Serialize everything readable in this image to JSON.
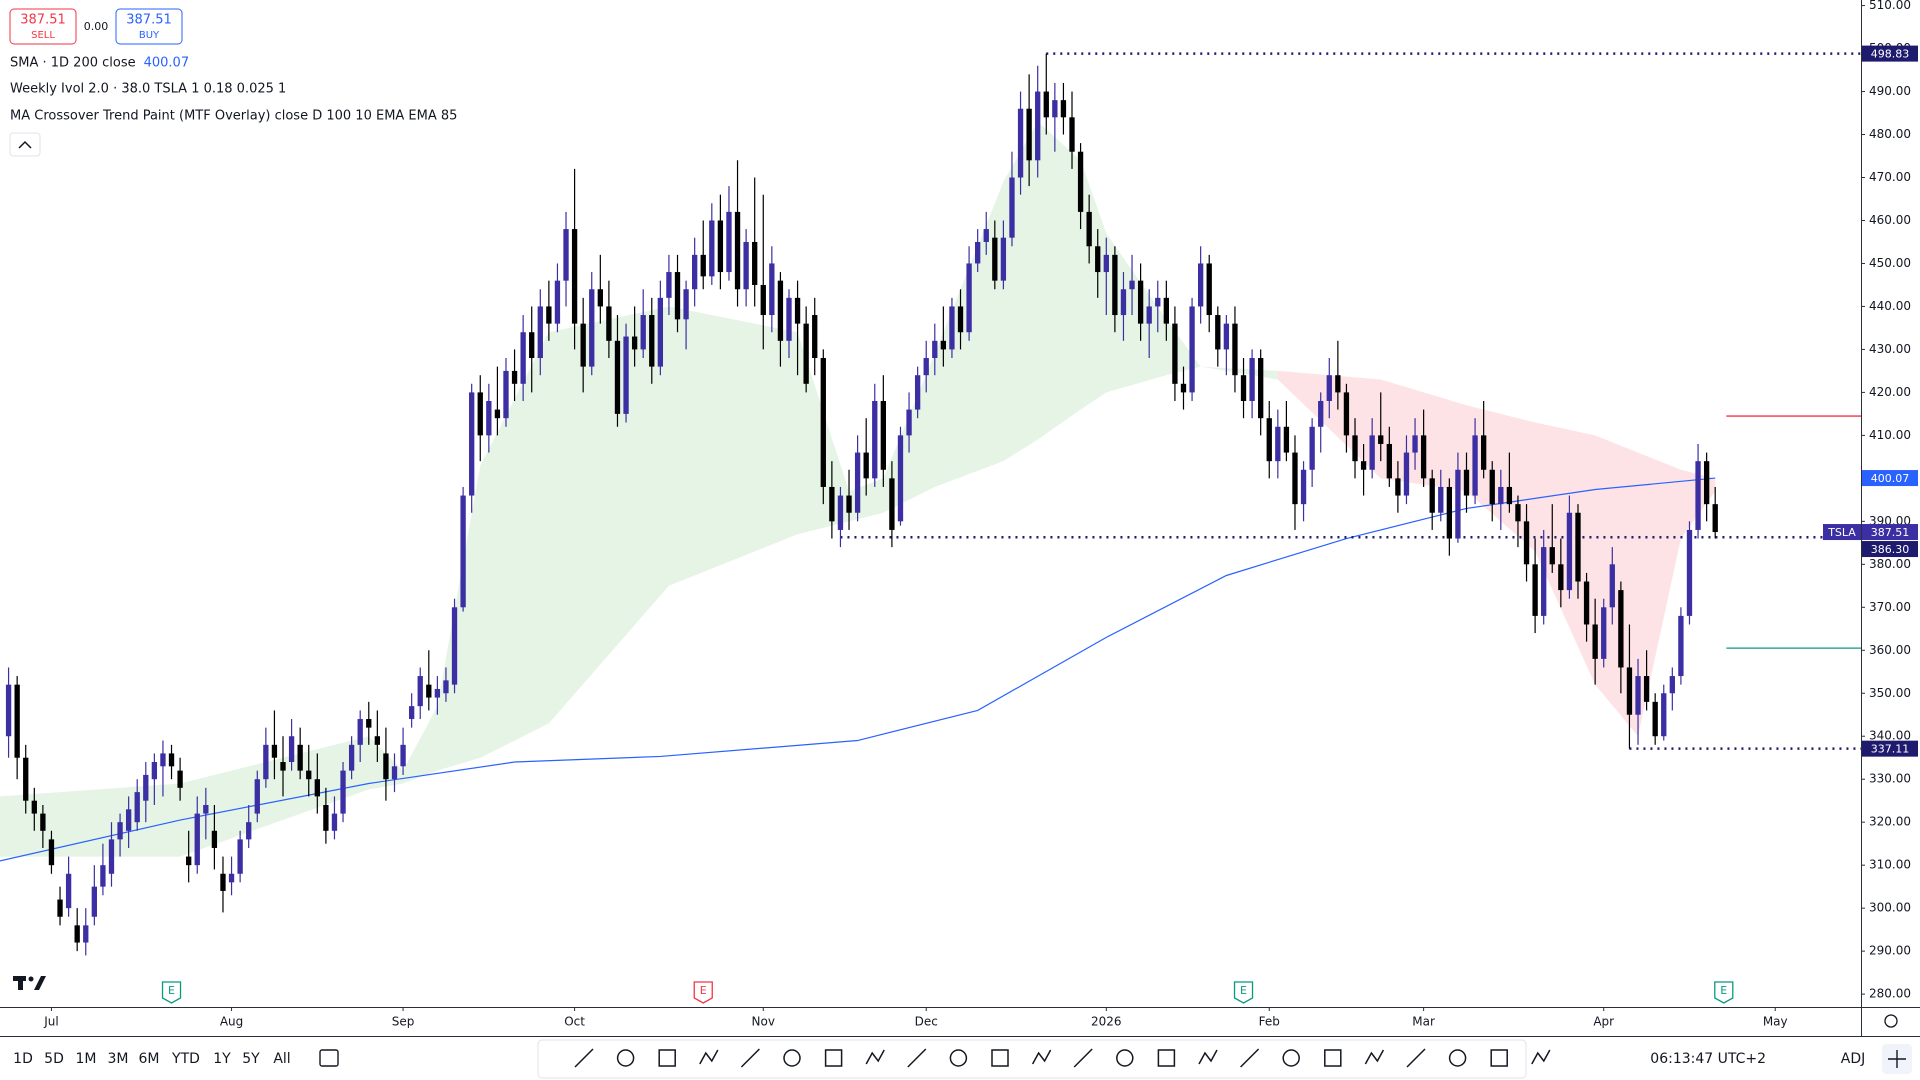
{
  "trade": {
    "sell_price": "387.51",
    "sell": "SELL",
    "spread": "0.00",
    "buy_price": "387.51",
    "buy": "BUY"
  },
  "legend": {
    "ivol": "Weekly Ivol 2.0 · 38.0 TSLA 1 0.18 0.025 1",
    "ma_paint": "MA Crossover Trend Paint (MTF Overlay) close D 100 10 EMA EMA 85"
  },
  "chart_data": {
    "type": "candlestick",
    "symbol": "TSLA",
    "up_color": "#3b2fa3",
    "down_color": "#000000",
    "grid": false,
    "xlim": [
      -1,
      216
    ],
    "ylim": [
      277,
      511.3
    ],
    "xticks": [
      {
        "value": 5,
        "label": "Jul"
      },
      {
        "value": 26,
        "label": "Aug"
      },
      {
        "value": 46,
        "label": "Sep"
      },
      {
        "value": 66,
        "label": "Oct"
      },
      {
        "value": 88,
        "label": "Nov"
      },
      {
        "value": 107,
        "label": "Dec"
      },
      {
        "value": 128,
        "label": "2026"
      },
      {
        "value": 147,
        "label": "Feb"
      },
      {
        "value": 165,
        "label": "Mar"
      },
      {
        "value": 186,
        "label": "Apr"
      },
      {
        "value": 206,
        "label": "May"
      }
    ],
    "yticks": [
      {
        "value": 280,
        "label": "280.00"
      },
      {
        "value": 290,
        "label": "290.00"
      },
      {
        "value": 300,
        "label": "300.00"
      },
      {
        "value": 310,
        "label": "310.00"
      },
      {
        "value": 320,
        "label": "320.00"
      },
      {
        "value": 330,
        "label": "330.00"
      },
      {
        "value": 340,
        "label": "340.00"
      },
      {
        "value": 350,
        "label": "350.00"
      },
      {
        "value": 360,
        "label": "360.00"
      },
      {
        "value": 370,
        "label": "370.00"
      },
      {
        "value": 380,
        "label": "380.00"
      },
      {
        "value": 390,
        "label": "390.00"
      },
      {
        "value": 400,
        "label": "400.00"
      },
      {
        "value": 410,
        "label": "410.00"
      },
      {
        "value": 420,
        "label": "420.00"
      },
      {
        "value": 430,
        "label": "430.00"
      },
      {
        "value": 440,
        "label": "440.00"
      },
      {
        "value": 450,
        "label": "450.00"
      },
      {
        "value": 460,
        "label": "460.00"
      },
      {
        "value": 470,
        "label": "470.00"
      },
      {
        "value": 480,
        "label": "480.00"
      },
      {
        "value": 490,
        "label": "490.00"
      },
      {
        "value": 500,
        "label": "500.00"
      },
      {
        "value": 510,
        "label": "510.00"
      }
    ],
    "candles": [
      [
        340,
        356,
        335,
        352
      ],
      [
        352,
        354,
        330,
        335
      ],
      [
        335,
        338,
        322,
        325
      ],
      [
        325,
        328,
        318,
        322
      ],
      [
        322,
        324,
        314,
        318
      ],
      [
        316,
        318,
        308,
        310
      ],
      [
        302,
        305,
        296,
        298
      ],
      [
        300,
        312,
        298,
        308
      ],
      [
        296,
        300,
        290,
        292
      ],
      [
        292,
        300,
        289,
        296
      ],
      [
        298,
        310,
        296,
        305
      ],
      [
        305,
        315,
        303,
        310
      ],
      [
        308,
        320,
        305,
        316
      ],
      [
        316,
        322,
        312,
        320
      ],
      [
        318,
        326,
        314,
        323
      ],
      [
        320,
        330,
        318,
        327
      ],
      [
        325,
        334,
        320,
        331
      ],
      [
        330,
        336,
        324,
        334
      ],
      [
        333,
        339,
        326,
        336
      ],
      [
        336,
        338,
        330,
        333
      ],
      [
        332,
        335,
        325,
        328
      ],
      [
        312,
        318,
        306,
        310
      ],
      [
        310,
        326,
        308,
        322
      ],
      [
        322,
        328,
        316,
        324
      ],
      [
        318,
        324,
        309,
        314
      ],
      [
        308,
        312,
        299,
        304
      ],
      [
        306,
        312,
        303,
        308
      ],
      [
        308,
        318,
        306,
        316
      ],
      [
        316,
        324,
        314,
        320
      ],
      [
        322,
        332,
        320,
        330
      ],
      [
        330,
        342,
        328,
        338
      ],
      [
        338,
        346,
        330,
        335
      ],
      [
        334,
        340,
        326,
        332
      ],
      [
        334,
        344,
        332,
        340
      ],
      [
        338,
        342,
        330,
        332
      ],
      [
        332,
        338,
        326,
        330
      ],
      [
        330,
        336,
        322,
        326
      ],
      [
        324,
        328,
        315,
        318
      ],
      [
        318,
        326,
        316,
        322
      ],
      [
        322,
        334,
        320,
        332
      ],
      [
        332,
        340,
        330,
        338
      ],
      [
        338,
        346,
        334,
        344
      ],
      [
        344,
        348,
        338,
        342
      ],
      [
        340,
        346,
        334,
        338
      ],
      [
        336,
        342,
        325,
        330
      ],
      [
        330,
        336,
        327,
        333
      ],
      [
        333,
        342,
        331,
        338
      ],
      [
        344,
        350,
        342,
        347
      ],
      [
        347,
        356,
        344,
        354
      ],
      [
        352,
        360,
        346,
        349
      ],
      [
        349,
        354,
        345,
        351
      ],
      [
        350,
        356,
        348,
        353
      ],
      [
        352,
        372,
        350,
        370
      ],
      [
        370,
        398,
        369,
        396
      ],
      [
        396,
        422,
        392,
        420
      ],
      [
        420,
        424,
        404,
        410
      ],
      [
        410,
        422,
        406,
        418
      ],
      [
        416,
        426,
        410,
        414
      ],
      [
        414,
        428,
        412,
        425
      ],
      [
        425,
        430,
        418,
        422
      ],
      [
        422,
        438,
        418,
        434
      ],
      [
        434,
        440,
        420,
        428
      ],
      [
        428,
        444,
        424,
        440
      ],
      [
        440,
        446,
        432,
        436
      ],
      [
        436,
        450,
        434,
        446
      ],
      [
        446,
        462,
        440,
        458
      ],
      [
        458,
        472,
        430,
        436
      ],
      [
        436,
        442,
        420,
        426
      ],
      [
        426,
        448,
        424,
        444
      ],
      [
        444,
        452,
        436,
        440
      ],
      [
        440,
        446,
        428,
        432
      ],
      [
        432,
        438,
        412,
        415
      ],
      [
        415,
        436,
        413,
        433
      ],
      [
        433,
        440,
        426,
        430
      ],
      [
        430,
        444,
        428,
        438
      ],
      [
        438,
        442,
        422,
        426
      ],
      [
        426,
        446,
        424,
        442
      ],
      [
        442,
        452,
        438,
        448
      ],
      [
        448,
        452,
        434,
        437
      ],
      [
        437,
        446,
        430,
        444
      ],
      [
        444,
        456,
        440,
        452
      ],
      [
        452,
        460,
        444,
        447
      ],
      [
        447,
        464,
        445,
        460
      ],
      [
        460,
        466,
        444,
        448
      ],
      [
        448,
        468,
        446,
        462
      ],
      [
        462,
        474,
        440,
        444
      ],
      [
        444,
        458,
        440,
        455
      ],
      [
        455,
        470,
        440,
        445
      ],
      [
        445,
        466,
        430,
        438
      ],
      [
        438,
        454,
        434,
        450
      ],
      [
        446,
        448,
        426,
        432
      ],
      [
        432,
        444,
        428,
        442
      ],
      [
        442,
        446,
        424,
        436
      ],
      [
        436,
        440,
        420,
        422
      ],
      [
        438,
        442,
        424,
        428
      ],
      [
        428,
        430,
        394,
        398
      ],
      [
        398,
        404,
        386,
        390
      ],
      [
        388,
        398,
        384,
        396
      ],
      [
        396,
        402,
        388,
        392
      ],
      [
        392,
        410,
        390,
        406
      ],
      [
        406,
        414,
        396,
        400
      ],
      [
        400,
        422,
        398,
        418
      ],
      [
        418,
        424,
        398,
        402
      ],
      [
        400,
        404,
        384,
        388
      ],
      [
        390,
        412,
        389,
        410
      ],
      [
        410,
        420,
        406,
        416
      ],
      [
        416,
        426,
        414,
        424
      ],
      [
        424,
        432,
        420,
        428
      ],
      [
        428,
        436,
        424,
        432
      ],
      [
        432,
        440,
        426,
        430
      ],
      [
        430,
        442,
        428,
        440
      ],
      [
        440,
        444,
        430,
        434
      ],
      [
        434,
        454,
        432,
        450
      ],
      [
        450,
        458,
        448,
        455
      ],
      [
        455,
        462,
        452,
        458
      ],
      [
        456,
        460,
        444,
        446
      ],
      [
        446,
        460,
        444,
        456
      ],
      [
        456,
        476,
        454,
        470
      ],
      [
        470,
        490,
        466,
        486
      ],
      [
        486,
        494,
        468,
        474
      ],
      [
        474,
        496,
        470,
        490
      ],
      [
        490,
        498.83,
        480,
        484
      ],
      [
        484,
        492,
        476,
        488
      ],
      [
        488,
        492,
        480,
        484
      ],
      [
        484,
        490,
        472,
        476
      ],
      [
        476,
        478,
        458,
        462
      ],
      [
        462,
        466,
        450,
        454
      ],
      [
        454,
        458,
        442,
        448
      ],
      [
        448,
        456,
        438,
        452
      ],
      [
        452,
        454,
        434,
        438
      ],
      [
        438,
        448,
        432,
        444
      ],
      [
        444,
        452,
        438,
        446
      ],
      [
        446,
        450,
        432,
        436
      ],
      [
        436,
        444,
        428,
        440
      ],
      [
        440,
        446,
        434,
        442
      ],
      [
        442,
        446,
        432,
        436
      ],
      [
        436,
        440,
        418,
        422
      ],
      [
        422,
        426,
        416,
        420
      ],
      [
        420,
        442,
        418,
        440
      ],
      [
        440,
        454,
        436,
        450
      ],
      [
        450,
        452,
        434,
        438
      ],
      [
        438,
        440,
        426,
        430
      ],
      [
        430,
        438,
        424,
        436
      ],
      [
        436,
        440,
        420,
        424
      ],
      [
        424,
        428,
        414,
        418
      ],
      [
        418,
        430,
        414,
        428
      ],
      [
        428,
        430,
        410,
        414
      ],
      [
        414,
        418,
        400,
        404
      ],
      [
        404,
        416,
        400,
        412
      ],
      [
        412,
        418,
        404,
        406
      ],
      [
        406,
        410,
        388,
        394
      ],
      [
        394,
        404,
        390,
        402
      ],
      [
        402,
        414,
        398,
        412
      ],
      [
        412,
        420,
        406,
        418
      ],
      [
        418,
        428,
        414,
        424
      ],
      [
        424,
        432,
        416,
        420
      ],
      [
        420,
        422,
        406,
        410
      ],
      [
        410,
        414,
        400,
        404
      ],
      [
        404,
        408,
        396,
        402
      ],
      [
        402,
        414,
        400,
        410
      ],
      [
        410,
        420,
        404,
        408
      ],
      [
        408,
        412,
        398,
        400
      ],
      [
        400,
        404,
        392,
        396
      ],
      [
        396,
        410,
        394,
        406
      ],
      [
        406,
        414,
        402,
        410
      ],
      [
        410,
        416,
        398,
        400
      ],
      [
        400,
        402,
        388,
        392
      ],
      [
        392,
        402,
        390,
        398
      ],
      [
        398,
        400,
        382,
        386
      ],
      [
        386,
        406,
        385,
        402
      ],
      [
        402,
        406,
        392,
        396
      ],
      [
        396,
        414,
        394,
        410
      ],
      [
        410,
        418,
        400,
        402
      ],
      [
        402,
        404,
        390,
        394
      ],
      [
        394,
        402,
        388,
        398
      ],
      [
        398,
        406,
        392,
        394
      ],
      [
        394,
        396,
        384,
        390
      ],
      [
        390,
        394,
        376,
        380
      ],
      [
        380,
        386,
        364,
        368
      ],
      [
        368,
        388,
        366,
        384
      ],
      [
        384,
        394,
        378,
        380
      ],
      [
        380,
        386,
        370,
        374
      ],
      [
        374,
        396,
        372,
        392
      ],
      [
        392,
        394,
        372,
        376
      ],
      [
        376,
        378,
        362,
        366
      ],
      [
        366,
        372,
        352,
        358
      ],
      [
        358,
        372,
        356,
        370
      ],
      [
        370,
        384,
        366,
        380
      ],
      [
        374,
        376,
        350,
        356
      ],
      [
        356,
        366,
        337.11,
        345
      ],
      [
        345,
        358,
        338,
        354
      ],
      [
        354,
        360,
        346,
        348
      ],
      [
        348,
        350,
        338,
        340
      ],
      [
        340,
        352,
        339,
        350
      ],
      [
        350,
        356,
        346,
        354
      ],
      [
        354,
        370,
        352,
        368
      ],
      [
        368,
        390,
        366,
        388
      ],
      [
        388,
        408,
        386,
        404
      ],
      [
        404,
        406,
        390,
        394
      ],
      [
        394,
        398,
        386,
        387.51
      ]
    ],
    "sma": {
      "name": "SMA · 1D 200 close",
      "color": "#2962ff",
      "x": [
        -1,
        20,
        42,
        59,
        76,
        99,
        113,
        128,
        142,
        156,
        170,
        185,
        199
      ],
      "values": [
        311,
        320.5,
        329,
        334,
        335.3,
        339,
        346,
        363,
        377.4,
        386,
        393,
        397.4,
        400.07
      ]
    },
    "fills": [
      {
        "color": "rgba(76,175,80,0.14)",
        "x": [
          -1,
          20,
          42,
          46,
          50,
          55,
          63,
          77,
          92,
          98,
          102,
          108,
          116,
          120,
          125,
          128,
          135,
          139,
          148
        ],
        "fast": [
          326,
          329,
          340,
          332,
          347,
          403,
          434,
          440,
          434,
          397,
          400,
          429,
          469,
          483,
          474,
          457,
          437,
          426,
          423
        ],
        "slow": [
          312,
          312,
          327.6,
          329,
          332,
          335,
          343,
          375,
          387,
          390,
          392,
          398,
          404,
          409,
          416,
          420,
          424,
          426,
          425
        ]
      },
      {
        "color": "rgba(242,54,69,0.14)",
        "x": [
          148,
          160,
          170,
          178,
          185,
          190,
          195,
          199
        ],
        "fast": [
          423,
          400,
          397,
          383,
          352,
          340,
          386,
          397
        ],
        "slow": [
          425,
          423,
          417,
          413,
          410,
          406,
          402,
          400
        ]
      }
    ],
    "levels": [
      {
        "value": 498.83,
        "from": 121
      },
      {
        "value": 386.3,
        "label": "386.30",
        "from": 97
      },
      {
        "value": 337.11,
        "from": 189
      }
    ],
    "targets": [
      {
        "value": 414.5,
        "color": "#f23645"
      },
      {
        "value": 360.5,
        "color": "#089981"
      }
    ],
    "earnings": [
      {
        "label": "E",
        "color": "#089981",
        "x": 19
      },
      {
        "label": "E",
        "color": "#f23645",
        "x": 81
      },
      {
        "label": "E",
        "color": "#089981",
        "x": 144
      },
      {
        "label": "E",
        "color": "#089981",
        "x": 200
      }
    ]
  },
  "toolbar": {
    "ranges": [
      "1D",
      "5D",
      "1M",
      "3M",
      "6M",
      "YTD",
      "1Y",
      "5Y",
      "All"
    ],
    "time": "06:13:47 UTC+2",
    "adj": "ADJ"
  }
}
